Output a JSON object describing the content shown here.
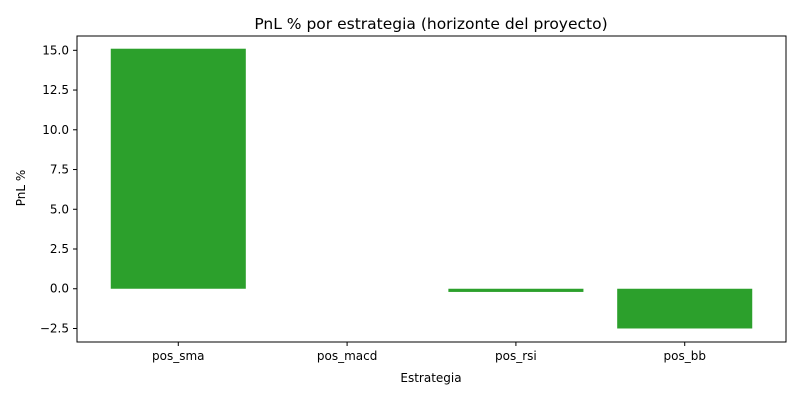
{
  "chart_data": {
    "type": "bar",
    "title": "PnL % por estrategia (horizonte del proyecto)",
    "xlabel": "Estrategia",
    "ylabel": "PnL %",
    "categories": [
      "pos_sma",
      "pos_macd",
      "pos_rsi",
      "pos_bb"
    ],
    "values": [
      15.1,
      0.0,
      -0.2,
      -2.5
    ],
    "ylim": [
      -3.35,
      15.9
    ],
    "yticks": [
      -2.5,
      0.0,
      2.5,
      5.0,
      7.5,
      10.0,
      12.5,
      15.0
    ],
    "ytick_labels": [
      "−2.5",
      "0.0",
      "2.5",
      "5.0",
      "7.5",
      "10.0",
      "12.5",
      "15.0"
    ],
    "bar_color": "#2ca02c",
    "grid": false,
    "legend": "none"
  }
}
